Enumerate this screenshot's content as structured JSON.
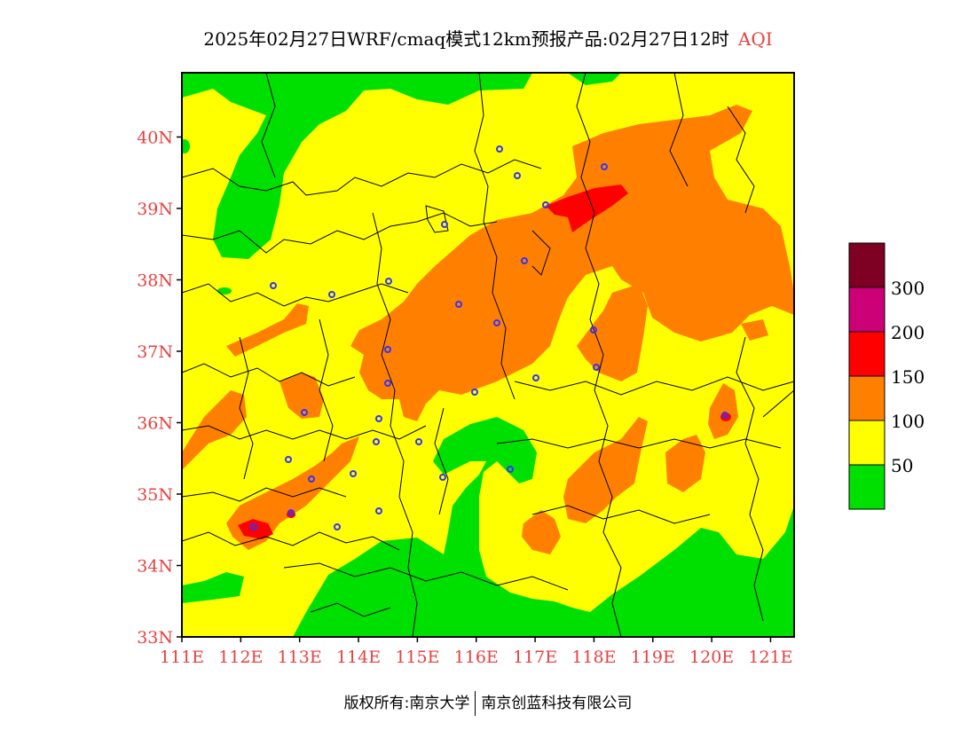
{
  "title": {
    "main": "2025年02月27日WRF/cmaq模式12km预报产品:02月27日12时",
    "variable": "AQI"
  },
  "map": {
    "lat_labels": [
      "40N",
      "39N",
      "38N",
      "37N",
      "36N",
      "35N",
      "34N",
      "33N"
    ],
    "lon_labels": [
      "111E",
      "112E",
      "113E",
      "114E",
      "115E",
      "116E",
      "117E",
      "118E",
      "119E",
      "120E",
      "121E"
    ],
    "lon_range": [
      111,
      121.4
    ],
    "lat_range": [
      33,
      40.9
    ],
    "colors": {
      "good": "#00e000",
      "moderate": "#ffff00",
      "usg": "#ff8000",
      "unhealthy": "#ff0000",
      "very_unhealthy": "#cc0077",
      "hazardous": "#7e0023",
      "label": "#e84040",
      "city_marker": "#3333ff"
    }
  },
  "legend": {
    "bins": [
      {
        "color": "#7e0023",
        "label": ""
      },
      {
        "color": "#cc0077",
        "label": "300"
      },
      {
        "color": "#ff0000",
        "label": "200"
      },
      {
        "color": "#ff8000",
        "label": "150"
      },
      {
        "color": "#ffff00",
        "label": "100"
      },
      {
        "color": "#00e000",
        "label": "50"
      }
    ]
  },
  "footer": {
    "left": "版权所有:南京大学",
    "right": "南京创蓝科技有限公司"
  }
}
